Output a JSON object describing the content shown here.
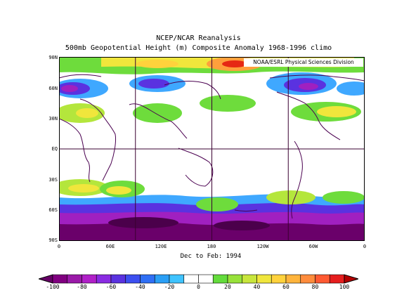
{
  "header": {
    "line1": "NCEP/NCAR Reanalysis",
    "line2": "500mb Geopotential Height (m) Composite Anomaly 1968-1996 climo"
  },
  "credit": "NOAA/ESRL Physical Sciences Division",
  "date_label": "Dec to Feb: 1994",
  "lat_labels": [
    "90N",
    "60N",
    "30N",
    "EQ",
    "30S",
    "60S",
    "90S"
  ],
  "lon_labels": [
    "0",
    "60E",
    "120E",
    "180",
    "120W",
    "60W",
    "0"
  ],
  "colorbar": {
    "tick_labels": [
      "-100",
      "-80",
      "-60",
      "-40",
      "-20",
      "0",
      "20",
      "40",
      "60",
      "80",
      "100"
    ],
    "colors": [
      "#660066",
      "#800080",
      "#9a1aa8",
      "#b020c8",
      "#8a2be2",
      "#5a32e0",
      "#3c4ff0",
      "#2f6ff5",
      "#2a9ff5",
      "#3fc3ff",
      "#ffffff",
      "#ffffff",
      "#64dc3c",
      "#98e23a",
      "#c8e63c",
      "#f0e63c",
      "#ffd23c",
      "#ffb43c",
      "#ff8c3c",
      "#ff5a32",
      "#e61e1e",
      "#b40000"
    ]
  },
  "palette": {
    "deep_purple": "#6a006a",
    "purple": "#a020c0",
    "violet": "#8a2be2",
    "blue": "#3c50f0",
    "cyan": "#3fa8ff",
    "green": "#6edc3c",
    "lime": "#b4e63c",
    "yellow": "#f0e63c",
    "orange": "#ffa03c",
    "red": "#e62814",
    "coast": "#4a0050",
    "grid": "#3a0030"
  }
}
